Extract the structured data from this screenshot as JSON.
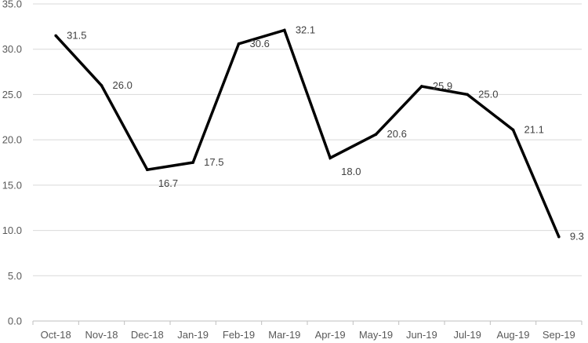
{
  "chart_data": {
    "type": "line",
    "title": "",
    "xlabel": "",
    "ylabel": "",
    "categories": [
      "Oct-18",
      "Nov-18",
      "Dec-18",
      "Jan-19",
      "Feb-19",
      "Mar-19",
      "Apr-19",
      "May-19",
      "Jun-19",
      "Jul-19",
      "Aug-19",
      "Sep-19"
    ],
    "series": [
      {
        "values": [
          31.5,
          26.0,
          16.7,
          17.5,
          30.6,
          32.1,
          18.0,
          20.6,
          25.9,
          25.0,
          21.1,
          9.3
        ]
      }
    ],
    "ylim": [
      0,
      35
    ],
    "yticks": [
      "0.0",
      "5.0",
      "10.0",
      "15.0",
      "20.0",
      "25.0",
      "30.0",
      "35.0"
    ],
    "data_labels": [
      "31.5",
      "26.0",
      "16.7",
      "17.5",
      "30.6",
      "32.1",
      "18.0",
      "20.6",
      "25.9",
      "25.0",
      "21.1",
      "9.3"
    ],
    "grid": true,
    "legend": "none",
    "line_color": "#000000"
  }
}
